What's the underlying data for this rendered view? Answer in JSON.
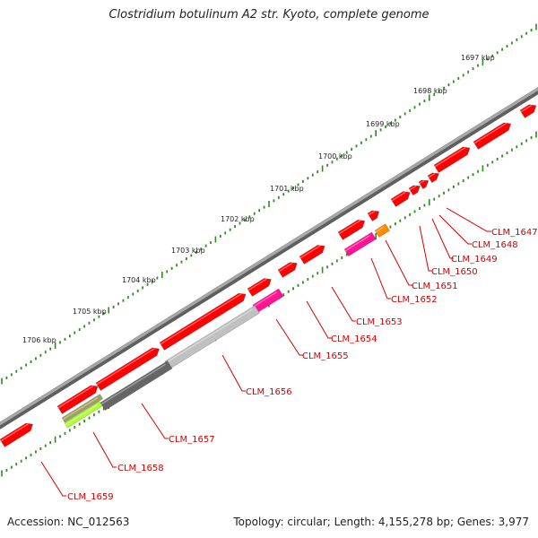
{
  "title": "Clostridium botulinum A2 str. Kyoto, complete genome",
  "accession_text": "Accession: NC_012563",
  "summary_text": "Topology: circular; Length: 4,155,278 bp; Genes: 3,977",
  "kbp_labels": [
    "1697 kbp",
    "1698 kbp",
    "1699 kbp",
    "1700 kbp",
    "1701 kbp",
    "1702 kbp",
    "1703 kbp",
    "1704 kbp",
    "1705 kbp",
    "1706 kbp"
  ],
  "gene_labels": [
    "CLM_1647",
    "CLM_1648",
    "CLM_1649",
    "CLM_1650",
    "CLM_1651",
    "CLM_1652",
    "CLM_1653",
    "CLM_1654",
    "CLM_1655",
    "CLM_1656",
    "CLM_1657",
    "CLM_1658",
    "CLM_1659"
  ],
  "colors": {
    "gene_default": "#ff0000",
    "backbone": "#8c8c8c",
    "tick": "#2e8b22",
    "label": "#d40000",
    "CLM_1652": "#ff1493",
    "CLM_1651": "#ff8c00",
    "CLM_1655": "#ff1493",
    "CLM_1656": "#c0c0c0",
    "CLM_1657": "#666666",
    "CLM_1658_upper": "#a0a060",
    "CLM_1658_lower": "#adff2f"
  }
}
